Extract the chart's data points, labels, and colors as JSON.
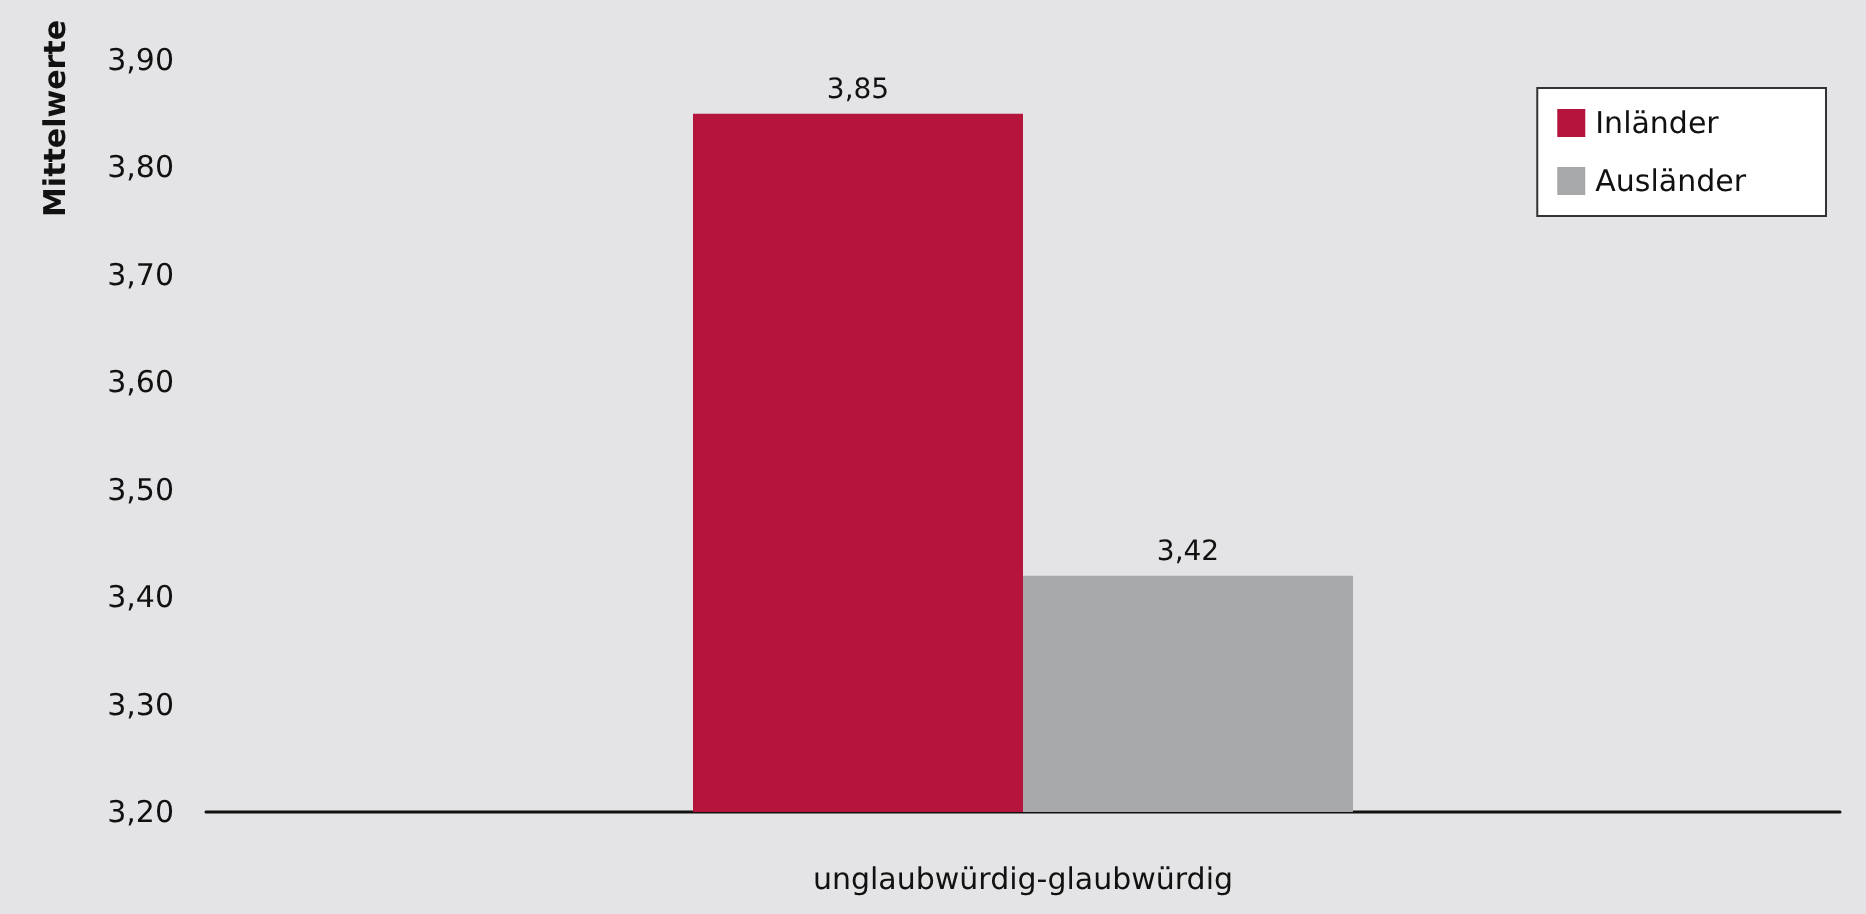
{
  "chart_data": {
    "type": "bar",
    "ylabel": "Mittelwerte",
    "categories": [
      "unglaubwürdig-glaubwürdig"
    ],
    "series": [
      {
        "name": "Inländer",
        "color": "#b5143c",
        "values": [
          3.85
        ],
        "value_labels": [
          "3,85"
        ]
      },
      {
        "name": "Ausländer",
        "color": "#a7a8aa",
        "values": [
          3.42
        ],
        "value_labels": [
          "3,42"
        ]
      }
    ],
    "ylim": [
      3.2,
      3.9
    ],
    "yticks": [
      {
        "value": 3.2,
        "label": "3,20"
      },
      {
        "value": 3.3,
        "label": "3,30"
      },
      {
        "value": 3.4,
        "label": "3,40"
      },
      {
        "value": 3.5,
        "label": "3,50"
      },
      {
        "value": 3.6,
        "label": "3,60"
      },
      {
        "value": 3.7,
        "label": "3,70"
      },
      {
        "value": 3.8,
        "label": "3,80"
      },
      {
        "value": 3.9,
        "label": "3,90"
      }
    ],
    "grid": false,
    "legend": "top right"
  }
}
